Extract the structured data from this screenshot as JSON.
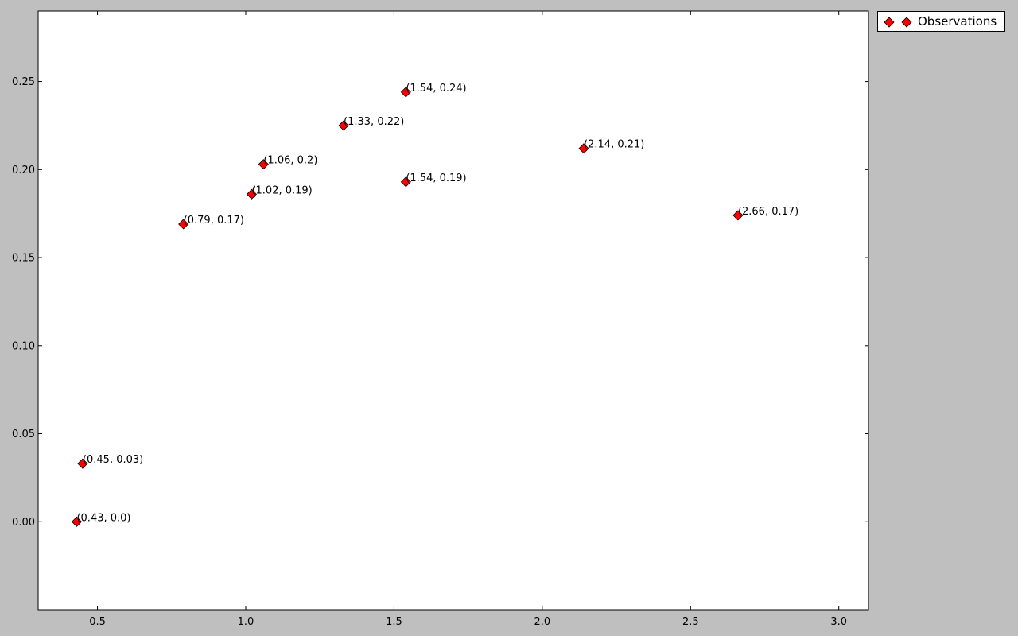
{
  "chart_data": {
    "type": "scatter",
    "title": "",
    "xlabel": "",
    "ylabel": "",
    "xlim": [
      0.3,
      3.1
    ],
    "ylim": [
      -0.05,
      0.29
    ],
    "xticks": [
      0.5,
      1.0,
      1.5,
      2.0,
      2.5,
      3.0
    ],
    "yticks": [
      0.0,
      0.05,
      0.1,
      0.15,
      0.2,
      0.25
    ],
    "xtick_labels": [
      "0.5",
      "1.0",
      "1.5",
      "2.0",
      "2.5",
      "3.0"
    ],
    "ytick_labels": [
      "0.00",
      "0.05",
      "0.10",
      "0.15",
      "0.20",
      "0.25"
    ],
    "grid": false,
    "legend_position": "outside-top-right",
    "series": [
      {
        "name": "Observations",
        "color": "#ff0000",
        "marker": "diamond",
        "points": [
          {
            "x": 0.43,
            "y": 0.0,
            "label": "(0.43, 0.0)"
          },
          {
            "x": 0.45,
            "y": 0.033,
            "label": "(0.45, 0.03)"
          },
          {
            "x": 0.79,
            "y": 0.169,
            "label": "(0.79, 0.17)"
          },
          {
            "x": 1.02,
            "y": 0.186,
            "label": "(1.02, 0.19)"
          },
          {
            "x": 1.06,
            "y": 0.203,
            "label": "(1.06, 0.2)"
          },
          {
            "x": 1.33,
            "y": 0.225,
            "label": "(1.33, 0.22)"
          },
          {
            "x": 1.54,
            "y": 0.244,
            "label": "(1.54, 0.24)"
          },
          {
            "x": 1.54,
            "y": 0.193,
            "label": "(1.54, 0.19)"
          },
          {
            "x": 2.14,
            "y": 0.212,
            "label": "(2.14, 0.21)"
          },
          {
            "x": 2.66,
            "y": 0.174,
            "label": "(2.66, 0.17)"
          }
        ]
      }
    ]
  }
}
